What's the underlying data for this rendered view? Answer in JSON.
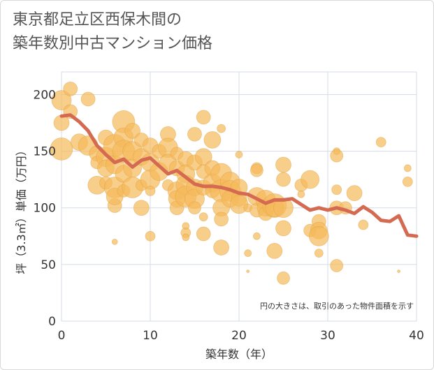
{
  "title_lines": [
    "東京都足立区西保木間の",
    "築年数別中古マンション価格"
  ],
  "chart_data": {
    "type": "scatter",
    "title": "東京都足立区西保木間の築年数別中古マンション価格",
    "xlabel": "築年数（年）",
    "ylabel": "坪（3.3㎡）単価（万円）",
    "xlim": [
      0,
      40
    ],
    "ylim": [
      0,
      220
    ],
    "xticks": [
      0,
      10,
      20,
      30,
      40
    ],
    "yticks": [
      0,
      50,
      100,
      150,
      200
    ],
    "grid": true,
    "annotation": "円の大きさは、取引のあった物件面積を示す",
    "colors": {
      "bubble": "#f5b95a",
      "line": "#d46a52"
    },
    "trend": {
      "x": [
        0,
        1,
        2,
        3,
        4,
        5,
        6,
        7,
        8,
        9,
        10,
        11,
        12,
        13,
        14,
        15,
        16,
        17,
        18,
        19,
        20,
        21,
        22,
        23,
        24,
        25,
        26,
        27,
        28,
        29,
        30,
        31,
        32,
        33,
        34,
        35,
        36,
        37,
        38,
        39,
        40
      ],
      "y": [
        181,
        182,
        176,
        168,
        155,
        147,
        140,
        143,
        136,
        142,
        144,
        137,
        130,
        133,
        127,
        121,
        119,
        119,
        118,
        116,
        113,
        112,
        108,
        104,
        107,
        107,
        108,
        103,
        98,
        100,
        98,
        100,
        98,
        95,
        101,
        96,
        89,
        88,
        93,
        76,
        75
      ]
    },
    "points": [
      {
        "x": 0,
        "y": 195,
        "s": 14
      },
      {
        "x": 0,
        "y": 175,
        "s": 11
      },
      {
        "x": 0,
        "y": 152,
        "s": 16
      },
      {
        "x": 1,
        "y": 205,
        "s": 10
      },
      {
        "x": 1,
        "y": 185,
        "s": 10
      },
      {
        "x": 2,
        "y": 158,
        "s": 12
      },
      {
        "x": 3,
        "y": 196,
        "s": 10
      },
      {
        "x": 3,
        "y": 155,
        "s": 14
      },
      {
        "x": 4,
        "y": 148,
        "s": 11
      },
      {
        "x": 4,
        "y": 120,
        "s": 13
      },
      {
        "x": 4,
        "y": 140,
        "s": 9
      },
      {
        "x": 5,
        "y": 162,
        "s": 11
      },
      {
        "x": 5,
        "y": 145,
        "s": 14
      },
      {
        "x": 5,
        "y": 135,
        "s": 12
      },
      {
        "x": 5,
        "y": 122,
        "s": 9
      },
      {
        "x": 6,
        "y": 155,
        "s": 16
      },
      {
        "x": 6,
        "y": 138,
        "s": 13
      },
      {
        "x": 6,
        "y": 118,
        "s": 15
      },
      {
        "x": 6,
        "y": 102,
        "s": 10
      },
      {
        "x": 6,
        "y": 110,
        "s": 12
      },
      {
        "x": 6,
        "y": 70,
        "s": 4
      },
      {
        "x": 7,
        "y": 176,
        "s": 16
      },
      {
        "x": 7,
        "y": 162,
        "s": 14
      },
      {
        "x": 7,
        "y": 150,
        "s": 16
      },
      {
        "x": 7,
        "y": 130,
        "s": 12
      },
      {
        "x": 7,
        "y": 115,
        "s": 9
      },
      {
        "x": 8,
        "y": 168,
        "s": 11
      },
      {
        "x": 8,
        "y": 150,
        "s": 14
      },
      {
        "x": 8,
        "y": 135,
        "s": 13
      },
      {
        "x": 8,
        "y": 118,
        "s": 15
      },
      {
        "x": 9,
        "y": 160,
        "s": 10
      },
      {
        "x": 9,
        "y": 145,
        "s": 12
      },
      {
        "x": 9,
        "y": 120,
        "s": 8
      },
      {
        "x": 9,
        "y": 100,
        "s": 11
      },
      {
        "x": 10,
        "y": 155,
        "s": 11
      },
      {
        "x": 10,
        "y": 140,
        "s": 13
      },
      {
        "x": 10,
        "y": 125,
        "s": 14
      },
      {
        "x": 10,
        "y": 115,
        "s": 7
      },
      {
        "x": 10,
        "y": 75,
        "s": 7
      },
      {
        "x": 11,
        "y": 150,
        "s": 10
      },
      {
        "x": 11,
        "y": 132,
        "s": 13
      },
      {
        "x": 12,
        "y": 165,
        "s": 11
      },
      {
        "x": 12,
        "y": 153,
        "s": 14
      },
      {
        "x": 12,
        "y": 140,
        "s": 12
      },
      {
        "x": 12,
        "y": 120,
        "s": 8
      },
      {
        "x": 13,
        "y": 148,
        "s": 9
      },
      {
        "x": 13,
        "y": 135,
        "s": 11
      },
      {
        "x": 13,
        "y": 115,
        "s": 13
      },
      {
        "x": 13,
        "y": 108,
        "s": 12
      },
      {
        "x": 13,
        "y": 100,
        "s": 10
      },
      {
        "x": 14,
        "y": 143,
        "s": 11
      },
      {
        "x": 14,
        "y": 130,
        "s": 13
      },
      {
        "x": 14,
        "y": 120,
        "s": 14
      },
      {
        "x": 14,
        "y": 110,
        "s": 15
      },
      {
        "x": 14,
        "y": 84,
        "s": 5
      },
      {
        "x": 14,
        "y": 78,
        "s": 7
      },
      {
        "x": 14,
        "y": 74,
        "s": 5
      },
      {
        "x": 15,
        "y": 165,
        "s": 10
      },
      {
        "x": 15,
        "y": 140,
        "s": 11
      },
      {
        "x": 15,
        "y": 118,
        "s": 12
      },
      {
        "x": 15,
        "y": 108,
        "s": 14
      },
      {
        "x": 15,
        "y": 100,
        "s": 9
      },
      {
        "x": 16,
        "y": 180,
        "s": 10
      },
      {
        "x": 16,
        "y": 145,
        "s": 12
      },
      {
        "x": 16,
        "y": 132,
        "s": 10
      },
      {
        "x": 16,
        "y": 118,
        "s": 11
      },
      {
        "x": 16,
        "y": 92,
        "s": 6
      },
      {
        "x": 16,
        "y": 77,
        "s": 10
      },
      {
        "x": 17,
        "y": 160,
        "s": 12
      },
      {
        "x": 17,
        "y": 135,
        "s": 11
      },
      {
        "x": 17,
        "y": 122,
        "s": 13
      },
      {
        "x": 17,
        "y": 115,
        "s": 10
      },
      {
        "x": 18,
        "y": 170,
        "s": 6
      },
      {
        "x": 18,
        "y": 130,
        "s": 15
      },
      {
        "x": 18,
        "y": 115,
        "s": 16
      },
      {
        "x": 18,
        "y": 100,
        "s": 12
      },
      {
        "x": 18,
        "y": 90,
        "s": 10
      },
      {
        "x": 18,
        "y": 65,
        "s": 11
      },
      {
        "x": 19,
        "y": 123,
        "s": 14
      },
      {
        "x": 19,
        "y": 115,
        "s": 15
      },
      {
        "x": 19,
        "y": 108,
        "s": 12
      },
      {
        "x": 20,
        "y": 147,
        "s": 5
      },
      {
        "x": 20,
        "y": 118,
        "s": 12
      },
      {
        "x": 20,
        "y": 108,
        "s": 11
      },
      {
        "x": 20,
        "y": 103,
        "s": 13
      },
      {
        "x": 21,
        "y": 100,
        "s": 6
      },
      {
        "x": 21,
        "y": 60,
        "s": 5
      },
      {
        "x": 21,
        "y": 44,
        "s": 2
      },
      {
        "x": 22,
        "y": 135,
        "s": 8
      },
      {
        "x": 22,
        "y": 133,
        "s": 9
      },
      {
        "x": 22,
        "y": 110,
        "s": 13
      },
      {
        "x": 22,
        "y": 98,
        "s": 10
      },
      {
        "x": 22,
        "y": 75,
        "s": 5
      },
      {
        "x": 23,
        "y": 107,
        "s": 14
      },
      {
        "x": 23,
        "y": 100,
        "s": 12
      },
      {
        "x": 23,
        "y": 95,
        "s": 10
      },
      {
        "x": 24,
        "y": 102,
        "s": 17
      },
      {
        "x": 24,
        "y": 100,
        "s": 13
      },
      {
        "x": 24,
        "y": 62,
        "s": 11
      },
      {
        "x": 25,
        "y": 138,
        "s": 11
      },
      {
        "x": 25,
        "y": 125,
        "s": 10
      },
      {
        "x": 25,
        "y": 100,
        "s": 14
      },
      {
        "x": 25,
        "y": 82,
        "s": 11
      },
      {
        "x": 25,
        "y": 38,
        "s": 9
      },
      {
        "x": 27,
        "y": 120,
        "s": 9
      },
      {
        "x": 27,
        "y": 112,
        "s": 5
      },
      {
        "x": 28,
        "y": 125,
        "s": 13
      },
      {
        "x": 28,
        "y": 80,
        "s": 9
      },
      {
        "x": 29,
        "y": 88,
        "s": 10
      },
      {
        "x": 29,
        "y": 80,
        "s": 12
      },
      {
        "x": 29,
        "y": 75,
        "s": 14
      },
      {
        "x": 29,
        "y": 60,
        "s": 6
      },
      {
        "x": 31,
        "y": 150,
        "s": 5
      },
      {
        "x": 31,
        "y": 146,
        "s": 9
      },
      {
        "x": 31,
        "y": 116,
        "s": 7
      },
      {
        "x": 31,
        "y": 100,
        "s": 10
      },
      {
        "x": 31,
        "y": 49,
        "s": 9
      },
      {
        "x": 32,
        "y": 100,
        "s": 9
      },
      {
        "x": 33,
        "y": 113,
        "s": 11
      },
      {
        "x": 34,
        "y": 85,
        "s": 7
      },
      {
        "x": 36,
        "y": 158,
        "s": 7
      },
      {
        "x": 38,
        "y": 44,
        "s": 2
      },
      {
        "x": 39,
        "y": 135,
        "s": 5
      },
      {
        "x": 39,
        "y": 123,
        "s": 7
      }
    ]
  }
}
